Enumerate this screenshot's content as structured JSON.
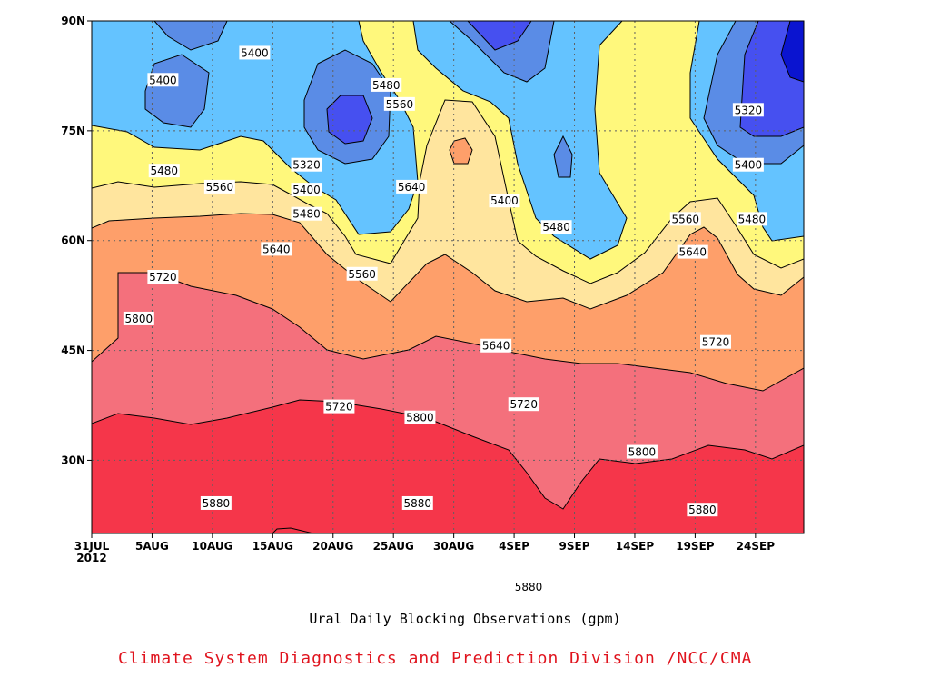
{
  "chart_data": {
    "type": "contour",
    "title": "Ural Daily Blocking Observations (gpm)",
    "credit": "Climate System Diagnostics and Prediction Division /NCC/CMA",
    "xaxis": {
      "ticks": [
        "31JUL",
        "5AUG",
        "10AUG",
        "15AUG",
        "20AUG",
        "25AUG",
        "30AUG",
        "4SEP",
        "9SEP",
        "14SEP",
        "19SEP",
        "24SEP"
      ],
      "first_tick_year": "2012",
      "tick_interval_days": 5,
      "range_days_from_31JUL": [
        0,
        59
      ]
    },
    "yaxis": {
      "ticks": [
        "30N",
        "45N",
        "60N",
        "75N",
        "90N"
      ],
      "tick_values": [
        30,
        45,
        60,
        75,
        90
      ],
      "range": [
        20,
        90
      ]
    },
    "grid": true,
    "contour_levels": [
      5320,
      5400,
      5480,
      5560,
      5640,
      5720,
      5800,
      5880
    ],
    "fill_colors": [
      "#0a14d0",
      "#4650f0",
      "#5a8ce6",
      "#64c3ff",
      "#fff87c",
      "#ffe59e",
      "#fe9f6a",
      "#fd6e48",
      "#f4707c",
      "#f5364a"
    ],
    "contour_labels": [
      {
        "text": "5400",
        "day": 13.5,
        "lat": 85.6
      },
      {
        "text": "5400",
        "day": 5.9,
        "lat": 81.9
      },
      {
        "text": "5480",
        "day": 24.4,
        "lat": 81.2
      },
      {
        "text": "5560",
        "day": 25.5,
        "lat": 78.6
      },
      {
        "text": "5320",
        "day": 54.4,
        "lat": 77.8
      },
      {
        "text": "5320",
        "day": 17.8,
        "lat": 70.3
      },
      {
        "text": "5480",
        "day": 6.0,
        "lat": 69.5
      },
      {
        "text": "5400",
        "day": 17.8,
        "lat": 66.9
      },
      {
        "text": "5640",
        "day": 26.5,
        "lat": 67.3
      },
      {
        "text": "5400",
        "day": 34.2,
        "lat": 65.4
      },
      {
        "text": "5560",
        "day": 10.6,
        "lat": 67.3
      },
      {
        "text": "5400",
        "day": 54.4,
        "lat": 70.3
      },
      {
        "text": "5560",
        "day": 49.2,
        "lat": 62.9
      },
      {
        "text": "5480",
        "day": 54.7,
        "lat": 62.9
      },
      {
        "text": "5480",
        "day": 17.8,
        "lat": 63.6
      },
      {
        "text": "5480",
        "day": 38.5,
        "lat": 61.8
      },
      {
        "text": "5640",
        "day": 15.3,
        "lat": 58.8
      },
      {
        "text": "5640",
        "day": 49.8,
        "lat": 58.4
      },
      {
        "text": "5560",
        "day": 22.4,
        "lat": 55.4
      },
      {
        "text": "5720",
        "day": 5.9,
        "lat": 55.0
      },
      {
        "text": "5800",
        "day": 3.9,
        "lat": 49.3
      },
      {
        "text": "5640",
        "day": 33.5,
        "lat": 45.6
      },
      {
        "text": "5720",
        "day": 51.7,
        "lat": 46.1
      },
      {
        "text": "5720",
        "day": 35.8,
        "lat": 37.6
      },
      {
        "text": "5720",
        "day": 20.5,
        "lat": 37.3
      },
      {
        "text": "5800",
        "day": 27.2,
        "lat": 35.8
      },
      {
        "text": "5800",
        "day": 45.6,
        "lat": 31.1
      },
      {
        "text": "5880",
        "day": 10.3,
        "lat": 24.1
      },
      {
        "text": "5880",
        "day": 27.0,
        "lat": 24.1
      },
      {
        "text": "5880",
        "day": 50.6,
        "lat": 23.2
      },
      {
        "text": "5880",
        "day": 36.2,
        "lat": 12.7
      }
    ]
  }
}
